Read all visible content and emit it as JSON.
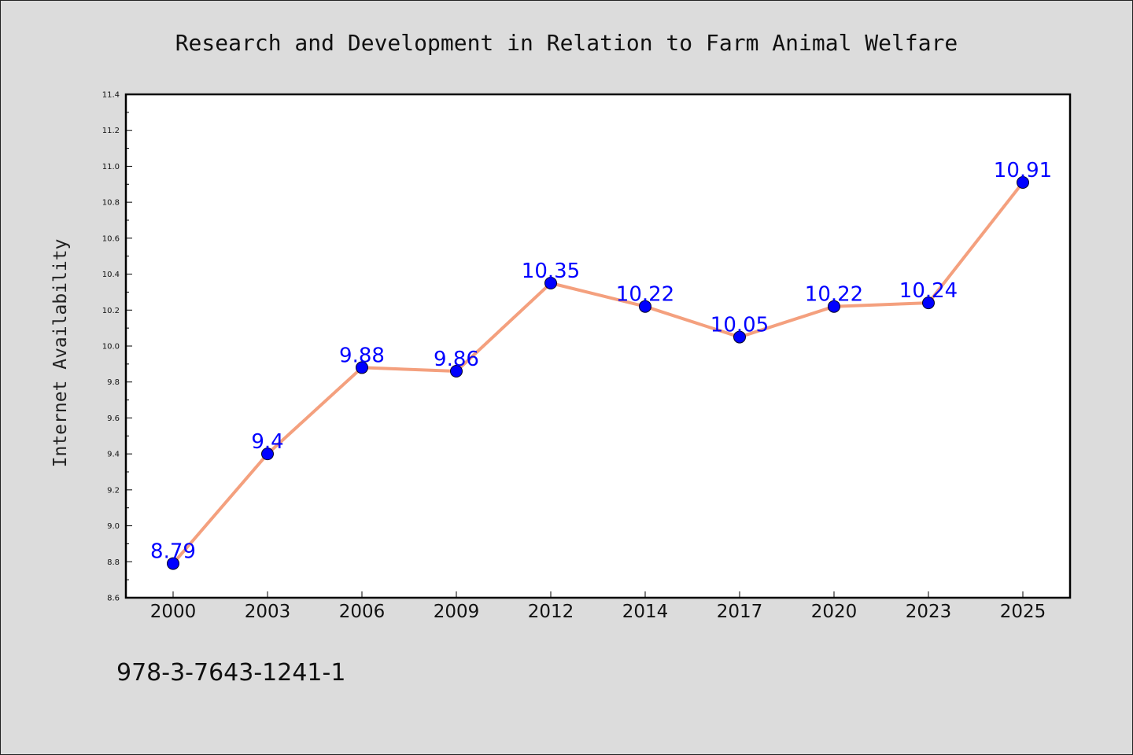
{
  "chart_data": {
    "type": "line",
    "title": "Research and Development in Relation to Farm Animal Welfare",
    "xlabel": "",
    "ylabel": "Internet Availability",
    "categories": [
      "2000",
      "2003",
      "2006",
      "2009",
      "2012",
      "2014",
      "2017",
      "2020",
      "2023",
      "2025"
    ],
    "series": [
      {
        "values": [
          8.79,
          9.4,
          9.88,
          9.86,
          10.35,
          10.22,
          10.05,
          10.22,
          10.24,
          10.91
        ],
        "labels": [
          "8.79",
          "9.4",
          "9.88",
          "9.86",
          "10.35",
          "10.22",
          "10.05",
          "10.22",
          "10.24",
          "10.91"
        ],
        "line_color": "#f4a07e",
        "marker_color": "#0000ff"
      }
    ],
    "ylim": [
      8.6,
      11.4
    ],
    "yticks": [
      8.6,
      8.8,
      9.0,
      9.2,
      9.4,
      9.6,
      9.8,
      10.0,
      10.2,
      10.4,
      10.6,
      10.8,
      11.0,
      11.2,
      11.4
    ],
    "ytick_labels": [
      "8.6",
      "8.8",
      "9.0",
      "9.2",
      "9.4",
      "9.6",
      "9.8",
      "10.0",
      "10.2",
      "10.4",
      "10.6",
      "10.8",
      "11.0",
      "11.2",
      "11.4"
    ],
    "grid": false,
    "background_color": "#dcdcdc",
    "plot_background": "#ffffff"
  },
  "caption": "978-3-7643-1241-1"
}
